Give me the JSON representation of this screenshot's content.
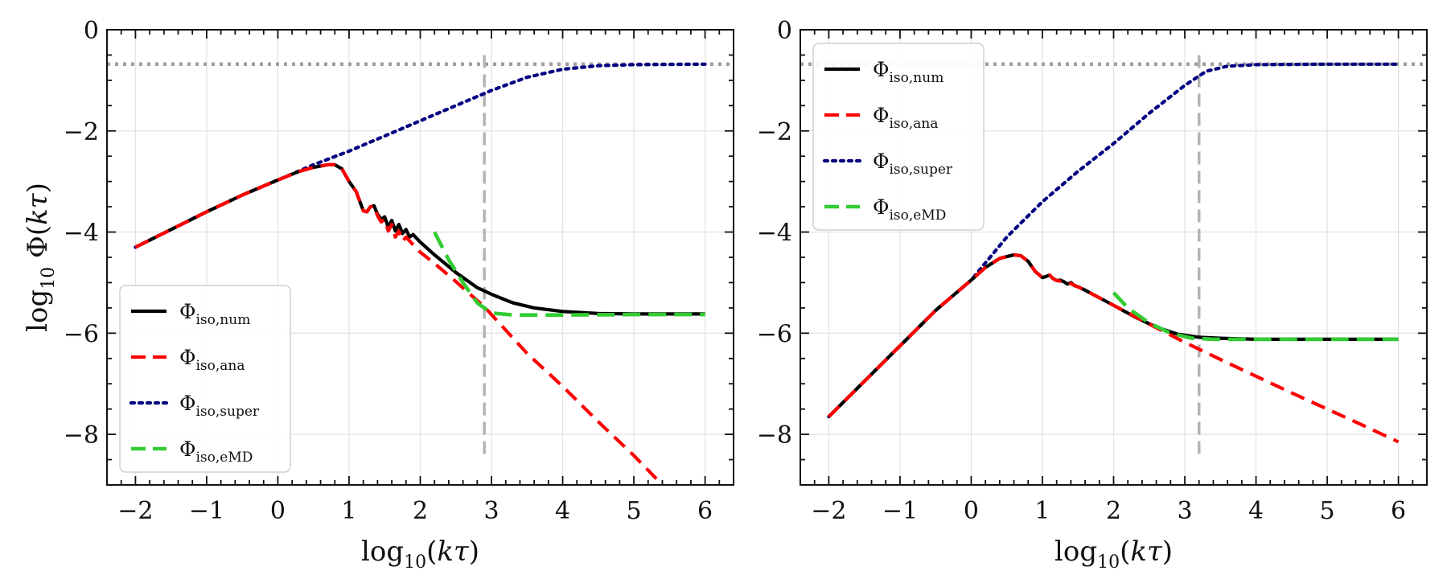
{
  "figure": {
    "ylabel_parts": [
      "log",
      "10",
      " Φ(",
      "kτ",
      ")"
    ]
  },
  "colors": {
    "num": "#000000",
    "ana": "#ff0000",
    "super": "#000080",
    "emd": "#33cc33",
    "asymptote": "#a0a0a0",
    "cutoff": "#b4b4b4",
    "grid": "#e3e3e3"
  },
  "chart_data": [
    {
      "type": "line",
      "xlabel_parts": [
        "log",
        "10",
        "(",
        "kτ",
        ")"
      ],
      "ylabel_parts": [
        "log",
        "10",
        " Φ(",
        "kτ",
        ")"
      ],
      "xlim": [
        -2.4,
        6.4
      ],
      "ylim": [
        -9,
        0
      ],
      "xticks": [
        -2,
        -1,
        0,
        1,
        2,
        3,
        4,
        5,
        6
      ],
      "xtick_labels": [
        "−2",
        "−1",
        "0",
        "1",
        "2",
        "3",
        "4",
        "5",
        "6"
      ],
      "yticks": [
        0,
        -2,
        -4,
        -6,
        -8
      ],
      "ytick_labels": [
        "0",
        "−2",
        "−4",
        "−6",
        "−8"
      ],
      "grid": true,
      "legend_position": "lower-left",
      "legend": [
        {
          "base": "Φ",
          "sub": "iso,num",
          "series": "num"
        },
        {
          "base": "Φ",
          "sub": "iso,ana",
          "series": "ana"
        },
        {
          "base": "Φ",
          "sub": "iso,super",
          "series": "super"
        },
        {
          "base": "Φ",
          "sub": "iso,eMD",
          "series": "emd"
        }
      ],
      "reference_lines": {
        "horizontal_y": -0.68,
        "vertical_x": 2.9,
        "vertical_y_range": [
          -8.5,
          -0.5
        ]
      },
      "series": [
        {
          "key": "num",
          "style": "solid",
          "x": [
            -2,
            -1.5,
            -1,
            -0.5,
            0,
            0.3,
            0.5,
            0.7,
            0.8,
            0.9,
            1.0,
            1.1,
            1.2,
            1.25,
            1.3,
            1.35,
            1.4,
            1.45,
            1.5,
            1.55,
            1.6,
            1.65,
            1.7,
            1.75,
            1.8,
            1.85,
            1.9,
            2.0,
            2.2,
            2.5,
            2.8,
            3.0,
            3.3,
            3.6,
            4.0,
            4.5,
            5.0,
            6.0
          ],
          "y": [
            -4.3,
            -3.95,
            -3.6,
            -3.27,
            -2.97,
            -2.8,
            -2.72,
            -2.67,
            -2.67,
            -2.75,
            -3.0,
            -3.2,
            -3.58,
            -3.6,
            -3.5,
            -3.48,
            -3.65,
            -3.75,
            -3.7,
            -3.9,
            -3.77,
            -3.98,
            -3.85,
            -4.03,
            -3.95,
            -4.1,
            -4.05,
            -4.2,
            -4.45,
            -4.8,
            -5.1,
            -5.23,
            -5.4,
            -5.5,
            -5.57,
            -5.61,
            -5.62,
            -5.62
          ]
        },
        {
          "key": "ana",
          "style": "dash",
          "x": [
            -2,
            -1.5,
            -1,
            -0.5,
            0,
            0.3,
            0.5,
            0.7,
            0.8,
            0.9,
            1.0,
            1.1,
            1.2,
            1.25,
            1.3,
            1.35,
            1.4,
            1.45,
            1.5,
            1.55,
            1.6,
            1.65,
            1.7,
            1.75,
            1.8,
            1.9,
            2.0,
            2.2,
            2.5,
            2.9,
            3.5,
            4.0,
            4.5,
            5.0,
            5.4
          ],
          "y": [
            -4.3,
            -3.95,
            -3.6,
            -3.27,
            -2.97,
            -2.8,
            -2.72,
            -2.67,
            -2.67,
            -2.75,
            -3.0,
            -3.2,
            -3.58,
            -3.6,
            -3.5,
            -3.48,
            -3.68,
            -3.8,
            -3.75,
            -3.98,
            -3.85,
            -4.1,
            -3.98,
            -4.18,
            -4.1,
            -4.25,
            -4.4,
            -4.62,
            -4.98,
            -5.48,
            -6.4,
            -7.05,
            -7.75,
            -8.42,
            -9.0
          ]
        },
        {
          "key": "super",
          "style": "dot",
          "x": [
            -2,
            -1.5,
            -1,
            -0.5,
            0,
            0.5,
            1.0,
            1.5,
            2.0,
            2.5,
            3.0,
            3.5,
            4.0,
            4.5,
            5.0,
            6.0
          ],
          "y": [
            -4.3,
            -3.95,
            -3.6,
            -3.27,
            -2.97,
            -2.67,
            -2.4,
            -2.1,
            -1.8,
            -1.5,
            -1.2,
            -0.94,
            -0.78,
            -0.71,
            -0.69,
            -0.68
          ]
        },
        {
          "key": "emd",
          "style": "dash",
          "x": [
            2.2,
            2.4,
            2.6,
            2.8,
            3.0,
            3.3,
            3.6,
            4.0,
            5.0,
            6.0
          ],
          "y": [
            -4.0,
            -4.55,
            -5.0,
            -5.4,
            -5.6,
            -5.64,
            -5.64,
            -5.64,
            -5.63,
            -5.63
          ]
        }
      ]
    },
    {
      "type": "line",
      "xlabel_parts": [
        "log",
        "10",
        "(",
        "kτ",
        ")"
      ],
      "xlim": [
        -2.4,
        6.4
      ],
      "ylim": [
        -9,
        0
      ],
      "xticks": [
        -2,
        -1,
        0,
        1,
        2,
        3,
        4,
        5,
        6
      ],
      "xtick_labels": [
        "−2",
        "−1",
        "0",
        "1",
        "2",
        "3",
        "4",
        "5",
        "6"
      ],
      "yticks": [
        0,
        -2,
        -4,
        -6,
        -8
      ],
      "ytick_labels": [
        "0",
        "−2",
        "−4",
        "−6",
        "−8"
      ],
      "grid": true,
      "legend_position": "upper-left",
      "legend": [
        {
          "base": "Φ",
          "sub": "iso,num",
          "series": "num"
        },
        {
          "base": "Φ",
          "sub": "iso,ana",
          "series": "ana"
        },
        {
          "base": "Φ",
          "sub": "iso,super",
          "series": "super"
        },
        {
          "base": "Φ",
          "sub": "iso,eMD",
          "series": "emd"
        }
      ],
      "reference_lines": {
        "horizontal_y": -0.68,
        "vertical_x": 3.2,
        "vertical_y_range": [
          -8.5,
          -0.5
        ]
      },
      "series": [
        {
          "key": "num",
          "style": "solid",
          "x": [
            -2,
            -1.5,
            -1,
            -0.5,
            0,
            0.2,
            0.4,
            0.6,
            0.7,
            0.8,
            0.9,
            1.0,
            1.05,
            1.1,
            1.15,
            1.2,
            1.25,
            1.3,
            1.35,
            1.4,
            1.45,
            1.5,
            1.6,
            1.8,
            2.0,
            2.3,
            2.6,
            2.9,
            3.2,
            3.5,
            4.0,
            5.0,
            6.0
          ],
          "y": [
            -7.65,
            -6.95,
            -6.25,
            -5.55,
            -4.95,
            -4.7,
            -4.52,
            -4.45,
            -4.47,
            -4.58,
            -4.78,
            -4.9,
            -4.88,
            -4.85,
            -4.92,
            -4.96,
            -4.95,
            -4.98,
            -5.03,
            -5.0,
            -5.06,
            -5.08,
            -5.15,
            -5.3,
            -5.45,
            -5.68,
            -5.88,
            -6.02,
            -6.08,
            -6.1,
            -6.12,
            -6.12,
            -6.12
          ]
        },
        {
          "key": "ana",
          "style": "dash",
          "x": [
            -2,
            -1.5,
            -1,
            -0.5,
            0,
            0.2,
            0.4,
            0.6,
            0.7,
            0.8,
            0.9,
            1.0,
            1.05,
            1.1,
            1.15,
            1.2,
            1.3,
            1.4,
            1.6,
            2.0,
            2.5,
            3.0,
            3.5,
            4.0,
            4.5,
            5.0,
            5.5,
            6.0
          ],
          "y": [
            -7.65,
            -6.95,
            -6.25,
            -5.55,
            -4.95,
            -4.7,
            -4.52,
            -4.45,
            -4.47,
            -4.58,
            -4.78,
            -4.9,
            -4.88,
            -4.85,
            -4.92,
            -4.96,
            -4.98,
            -5.02,
            -5.15,
            -5.45,
            -5.82,
            -6.18,
            -6.52,
            -6.85,
            -7.18,
            -7.5,
            -7.82,
            -8.15
          ]
        },
        {
          "key": "super",
          "style": "dot",
          "x": [
            -2,
            -1.5,
            -1,
            -0.5,
            0,
            0.5,
            1.0,
            1.5,
            2.0,
            2.5,
            3.0,
            3.3,
            3.6,
            4.0,
            5.0,
            6.0
          ],
          "y": [
            -7.65,
            -6.95,
            -6.25,
            -5.55,
            -4.95,
            -4.1,
            -3.4,
            -2.8,
            -2.25,
            -1.65,
            -1.1,
            -0.82,
            -0.72,
            -0.69,
            -0.68,
            -0.68
          ]
        },
        {
          "key": "emd",
          "style": "dash",
          "x": [
            2.0,
            2.2,
            2.5,
            2.8,
            3.1,
            3.4,
            3.7,
            4.0,
            5.0,
            6.0
          ],
          "y": [
            -5.2,
            -5.5,
            -5.8,
            -6.0,
            -6.1,
            -6.12,
            -6.12,
            -6.12,
            -6.12,
            -6.12
          ]
        }
      ]
    }
  ]
}
